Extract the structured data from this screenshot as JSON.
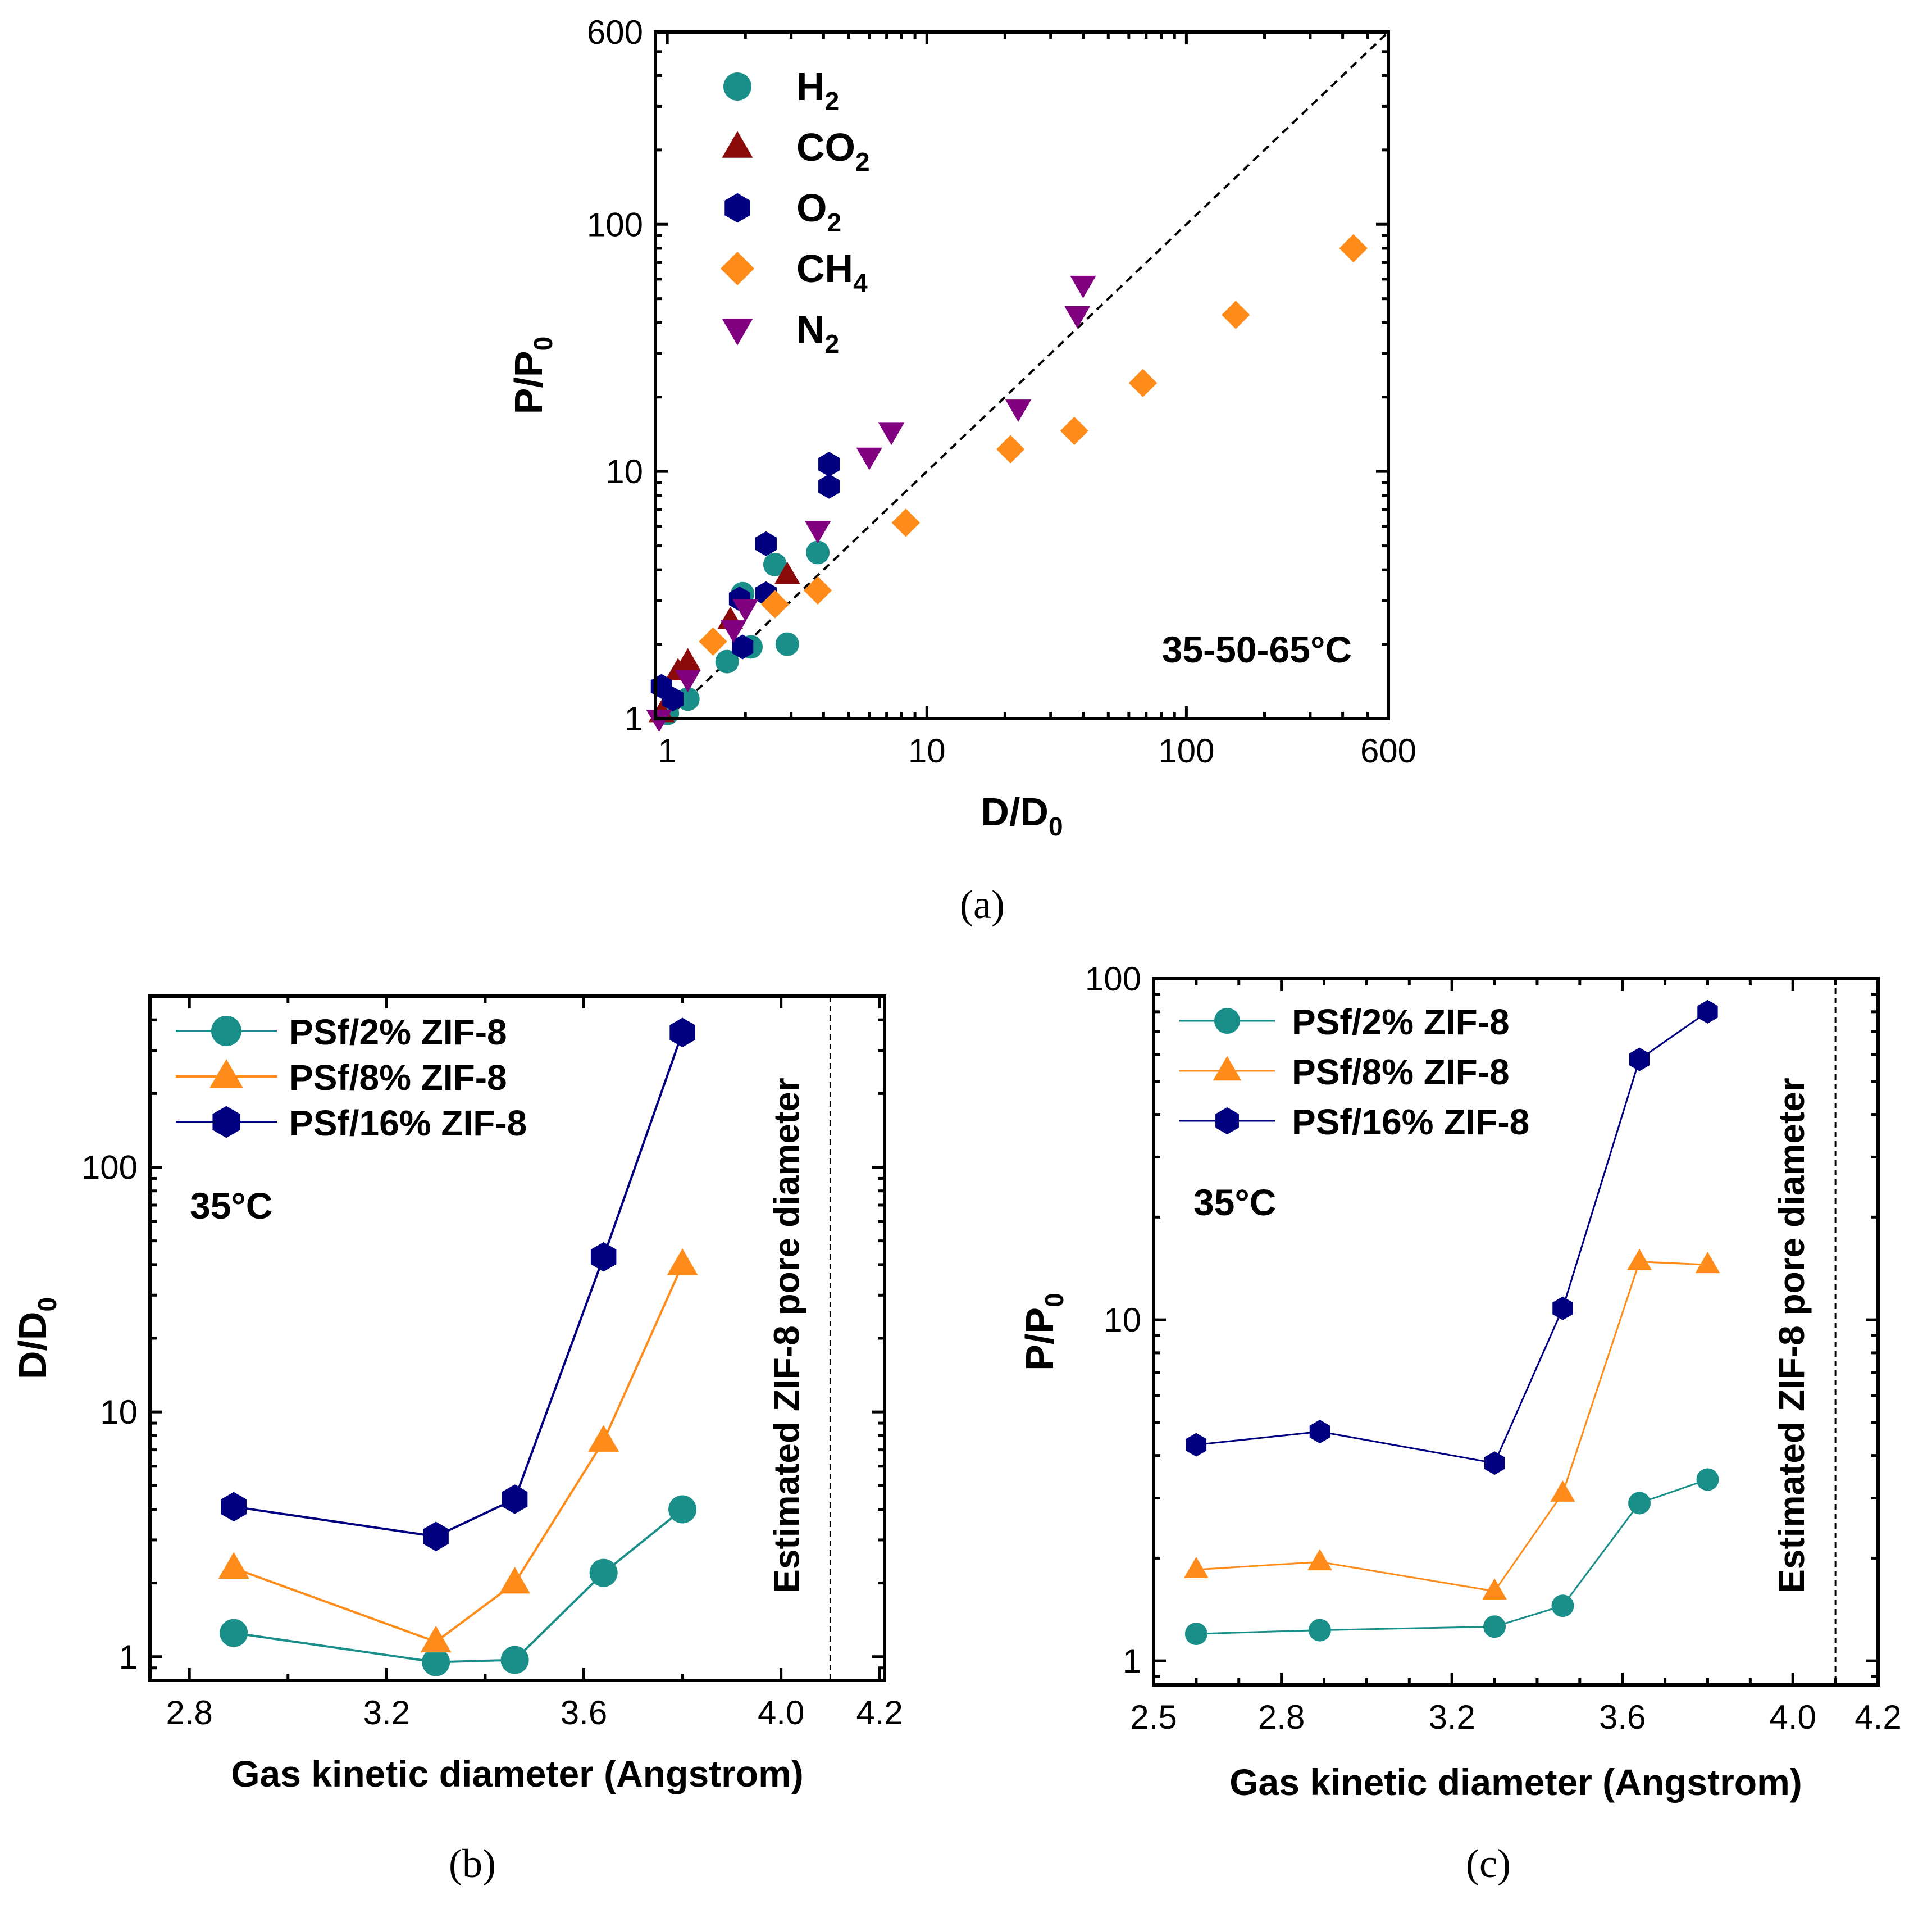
{
  "chart_data": [
    {
      "id": "a",
      "type": "scatter",
      "caption": "(a)",
      "xlabel_main": "D/D",
      "xlabel_sub": "0",
      "ylabel_main": "P/P",
      "ylabel_sub": "0",
      "xscale": "log",
      "yscale": "log",
      "xlim": [
        0.9,
        600
      ],
      "ylim": [
        1,
        600
      ],
      "xtick_labels": [
        "1",
        "10",
        "100",
        "600"
      ],
      "ytick_labels": [
        "1",
        "10",
        "100",
        "600"
      ],
      "annotation": "35-50-65°C",
      "reference_line": "y = x (dashed)",
      "legend_position": "top-left",
      "series": [
        {
          "name_main": "H",
          "name_sub": "2",
          "marker": "circle",
          "color": "#1a8f8a",
          "points": [
            [
              1.0,
              1.05
            ],
            [
              1.2,
              1.2
            ],
            [
              1.7,
              1.7
            ],
            [
              2.1,
              1.95
            ],
            [
              2.9,
              2.0
            ],
            [
              1.95,
              3.2
            ],
            [
              2.6,
              4.2
            ],
            [
              3.8,
              4.7
            ]
          ]
        },
        {
          "name_main": "CO",
          "name_sub": "2",
          "marker": "triangle-up",
          "color": "#8b0a0a",
          "points": [
            [
              0.95,
              1.05
            ],
            [
              1.1,
              1.55
            ],
            [
              1.2,
              1.7
            ],
            [
              1.75,
              2.5
            ],
            [
              2.9,
              3.8
            ]
          ]
        },
        {
          "name_main": "O",
          "name_sub": "2",
          "marker": "hexagon",
          "color": "#000080",
          "points": [
            [
              0.95,
              1.35
            ],
            [
              1.05,
              1.2
            ],
            [
              1.9,
              3.05
            ],
            [
              1.95,
              1.95
            ],
            [
              2.4,
              3.2
            ],
            [
              2.4,
              5.1
            ],
            [
              4.2,
              8.7
            ],
            [
              4.2,
              10.7
            ]
          ]
        },
        {
          "name_main": "CH",
          "name_sub": "4",
          "marker": "diamond",
          "color": "#ff8c1a",
          "points": [
            [
              1.5,
              2.05
            ],
            [
              2.6,
              2.9
            ],
            [
              3.8,
              3.3
            ],
            [
              8.3,
              6.2
            ],
            [
              21,
              12.3
            ],
            [
              37,
              14.6
            ],
            [
              68,
              22.8
            ],
            [
              155,
              43
            ],
            [
              440,
              80
            ]
          ]
        },
        {
          "name_main": "N",
          "name_sub": "2",
          "marker": "triangle-down",
          "color": "#800080",
          "points": [
            [
              0.93,
              1.0
            ],
            [
              1.2,
              1.45
            ],
            [
              1.8,
              2.3
            ],
            [
              2.0,
              2.8
            ],
            [
              3.8,
              5.8
            ],
            [
              6.0,
              11.5
            ],
            [
              7.3,
              14.5
            ],
            [
              22.5,
              18
            ],
            [
              38,
              43
            ],
            [
              40,
              57
            ]
          ]
        }
      ]
    },
    {
      "id": "b",
      "type": "line",
      "caption": "(b)",
      "xlabel": "Gas kinetic diameter (Angstrom)",
      "ylabel_main": "D/D",
      "ylabel_sub": "0",
      "xscale": "linear",
      "yscale": "log",
      "xlim": [
        2.72,
        4.21
      ],
      "ylim": [
        0.8,
        500
      ],
      "xtick_labels": [
        "2.8",
        "3.2",
        "3.6",
        "4.0",
        "4.2"
      ],
      "ytick_labels": [
        "1",
        "10",
        "100"
      ],
      "annotation": "35°C",
      "vline_label": "Estimated ZIF-8 pore diameter",
      "vline_x": 4.1,
      "legend_position": "top-left",
      "series": [
        {
          "name": "PSf/2% ZIF-8",
          "marker": "circle",
          "color": "#1a8f8a",
          "x": [
            2.89,
            3.3,
            3.46,
            3.64,
            3.8
          ],
          "y": [
            1.25,
            0.95,
            0.97,
            2.2,
            4.0
          ]
        },
        {
          "name": "PSf/8% ZIF-8",
          "marker": "triangle-up",
          "color": "#ff8c1a",
          "x": [
            2.89,
            3.3,
            3.46,
            3.64,
            3.8
          ],
          "y": [
            2.3,
            1.15,
            2.0,
            7.6,
            40
          ]
        },
        {
          "name": "PSf/16% ZIF-8",
          "marker": "hexagon",
          "color": "#000080",
          "x": [
            2.89,
            3.3,
            3.46,
            3.64,
            3.8
          ],
          "y": [
            4.1,
            3.1,
            4.4,
            43,
            355
          ]
        }
      ]
    },
    {
      "id": "c",
      "type": "line",
      "caption": "(c)",
      "xlabel": "Gas kinetic diameter (Angstrom)",
      "ylabel_main": "P/P",
      "ylabel_sub": "0",
      "xscale": "linear",
      "yscale": "log",
      "xlim": [
        2.5,
        4.2
      ],
      "ylim": [
        0.85,
        100
      ],
      "xtick_labels": [
        "2.5",
        "2.8",
        "3.2",
        "3.6",
        "4.0",
        "4.2"
      ],
      "ytick_labels": [
        "1",
        "10",
        "100"
      ],
      "annotation": "35°C",
      "vline_label": "Estimated ZIF-8 pore diameter",
      "vline_x": 4.1,
      "legend_position": "top-left",
      "series": [
        {
          "name": "PSf/2% ZIF-8",
          "marker": "circle",
          "color": "#1a8f8a",
          "x": [
            2.6,
            2.89,
            3.3,
            3.46,
            3.64,
            3.8
          ],
          "y": [
            1.2,
            1.23,
            1.26,
            1.45,
            2.9,
            3.4
          ]
        },
        {
          "name": "PSf/8% ZIF-8",
          "marker": "triangle-up",
          "color": "#ff8c1a",
          "x": [
            2.6,
            2.89,
            3.3,
            3.46,
            3.64,
            3.8
          ],
          "y": [
            1.85,
            1.95,
            1.6,
            3.1,
            14.8,
            14.5
          ]
        },
        {
          "name": "PSf/16% ZIF-8",
          "marker": "hexagon",
          "color": "#000080",
          "x": [
            2.6,
            2.89,
            3.3,
            3.46,
            3.64,
            3.8
          ],
          "y": [
            4.3,
            4.7,
            3.8,
            10.8,
            58,
            80
          ]
        }
      ]
    }
  ]
}
